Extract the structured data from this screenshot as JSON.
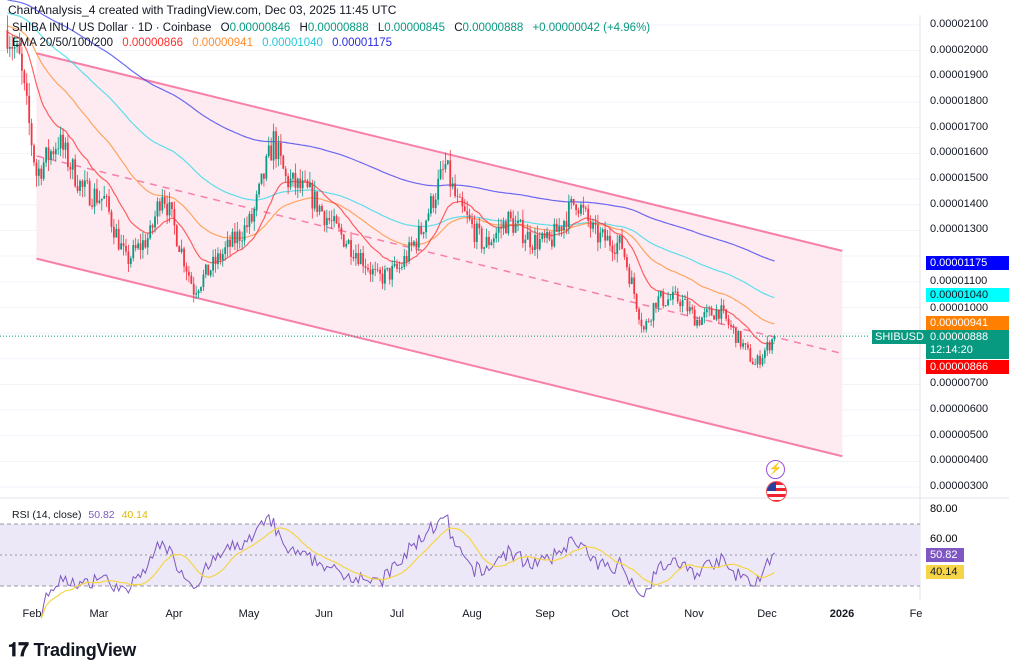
{
  "credit": "ChartAnalysis_4 created with TradingView.com, Dec 03, 2025 11:45 UTC",
  "legend": {
    "symbol": "SHIBA INU / US Dollar · 1D · Coinbase",
    "o_label": "O",
    "o": "0.00000846",
    "h_label": "H",
    "h": "0.00000888",
    "l_label": "L",
    "l": "0.00000845",
    "c_label": "C",
    "c": "0.00000888",
    "change": "+0.00000042 (+4.96%)",
    "ema_label": "EMA 20/50/100/200",
    "ema20": "0.00000866",
    "ema50": "0.00000941",
    "ema100": "0.00001040",
    "ema200": "0.00001175"
  },
  "colors": {
    "up": "#089981",
    "down": "#f23645",
    "ema20": "#ff2d2d",
    "ema50": "#ff8c2e",
    "ema100": "#28d8e8",
    "ema200": "#3b3bf0",
    "channel": "#f77fa8",
    "rsi": "#7e57c2",
    "rsi_ma": "#f5d547"
  },
  "badges": {
    "symbol_tag": "SHIBUSD",
    "price": "0.00000888",
    "countdown": "12:14:20",
    "ema20": "0.00000866",
    "ema50": "0.00000941",
    "ema100": "0.00001040",
    "ema200": "0.00001175"
  },
  "rsi": {
    "label": "RSI (14, close)",
    "value": "50.82",
    "ma": "40.14"
  },
  "icons": [
    "lightning-icon",
    "us-flag-icon"
  ],
  "logo": "TradingView",
  "chart_data": {
    "type": "candlestick",
    "price_axis": {
      "ticks": [
        "0.00002100",
        "0.00002000",
        "0.00001900",
        "0.00001800",
        "0.00001700",
        "0.00001600",
        "0.00001500",
        "0.00001400",
        "0.00001300",
        "0.00001100",
        "0.00001000",
        "0.00000700",
        "0.00000600",
        "0.00000500",
        "0.00000400",
        "0.00000300"
      ],
      "range": [
        2.7e-06,
        2.12e-05
      ]
    },
    "rsi_axis": {
      "ticks": [
        "80.00",
        "60.00"
      ],
      "bands": [
        30,
        70
      ]
    },
    "x_ticks": [
      "Feb",
      "Mar",
      "Apr",
      "May",
      "Jun",
      "Jul",
      "Aug",
      "Sep",
      "Oct",
      "Nov",
      "Dec",
      "2026",
      "Fe"
    ],
    "close_path_day_of_year": [
      20,
      25,
      32,
      41,
      51,
      60,
      69,
      79,
      84,
      97,
      110,
      121,
      130,
      135,
      145,
      156,
      166,
      173,
      182,
      191,
      201,
      206,
      217,
      227,
      237,
      244,
      255,
      263,
      274,
      283,
      288,
      298,
      305,
      314,
      324,
      329,
      337
    ],
    "close_path_value_e6": [
      20.8,
      19.6,
      15.2,
      16.5,
      14.6,
      14.2,
      11.8,
      12.8,
      14.6,
      10.7,
      12.2,
      13.4,
      16.5,
      15.0,
      14.4,
      13.0,
      12.0,
      11.1,
      11.5,
      13.0,
      15.5,
      14.0,
      12.4,
      13.4,
      12.6,
      12.5,
      14.2,
      12.8,
      12.4,
      9.1,
      10.3,
      10.3,
      9.5,
      9.9,
      8.5,
      7.75,
      8.88
    ],
    "channel_e6": {
      "upper": [
        [
          32,
          19.9
        ],
        [
          365,
          12.2
        ]
      ],
      "lower": [
        [
          32,
          11.9
        ],
        [
          365,
          4.2
        ]
      ],
      "mid": [
        [
          32,
          15.9
        ],
        [
          365,
          8.2
        ]
      ]
    }
  }
}
